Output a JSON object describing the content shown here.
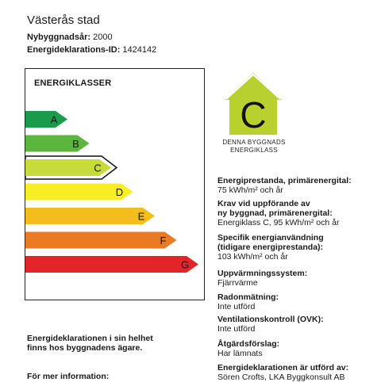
{
  "header": {
    "title": "Västerås stad",
    "year_label": "Nybyggnadsår:",
    "year_value": "2000",
    "id_label": "Energideklarations-ID:",
    "id_value": "1424142"
  },
  "scale": {
    "heading": "ENERGIKLASSER",
    "classes": [
      {
        "letter": "A",
        "color": "#1a9b4b"
      },
      {
        "letter": "B",
        "color": "#5cb63d"
      },
      {
        "letter": "C",
        "color": "#c7dc3b"
      },
      {
        "letter": "D",
        "color": "#f7ee23"
      },
      {
        "letter": "E",
        "color": "#f4bd1e"
      },
      {
        "letter": "F",
        "color": "#ea7a24"
      },
      {
        "letter": "G",
        "color": "#e3252a"
      }
    ],
    "selected": "C"
  },
  "badge": {
    "letter": "C",
    "color": "#b8d12e",
    "caption_line1": "DENNA BYGGNADS",
    "caption_line2": "ENERGIKLASS"
  },
  "info": {
    "primary_label": "Energiprestanda, primärenergital:",
    "primary_value": "75 kWh/m² och år",
    "req_label_1": "Krav vid uppförande av",
    "req_label_2": "ny byggnad, primärenergital:",
    "req_value": "Energiklass C, 95 kWh/m² och år",
    "spec_label_1": "Specifik energianvändning",
    "spec_label_2": "(tidigare energiprestanda):",
    "spec_value": "103 kWh/m² och år",
    "heating_label": "Uppvärmningssystem:",
    "heating_value": "Fjärrvärme",
    "radon_label": "Radonmätning:",
    "radon_value": "Inte utförd",
    "ovk_label": "Ventilationskontroll (OVK):",
    "ovk_value": "Inte utförd",
    "measures_label": "Åtgärdsförslag:",
    "measures_value": "Har lämnats",
    "by_label": "Energideklarationen är utförd av:",
    "by_value": "Sören Crofts, LKA Byggkonsult AB"
  },
  "footer": {
    "note_1": "Energideklarationen i sin helhet",
    "note_2": "finns hos byggnadens ägare.",
    "more": "För mer information:"
  }
}
